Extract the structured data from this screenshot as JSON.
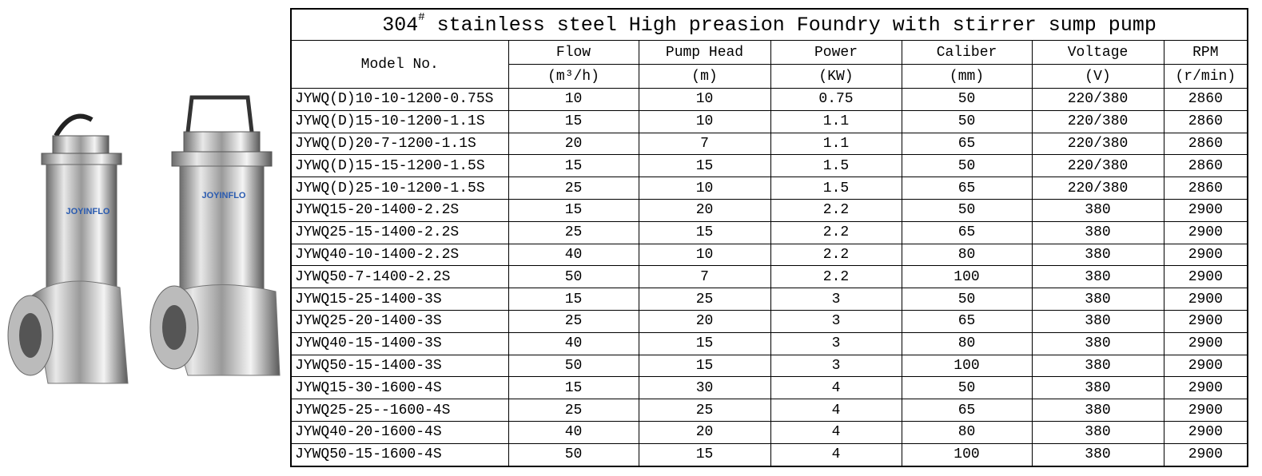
{
  "logos": [
    "JOYINFLO",
    "JOYINFLO"
  ],
  "table": {
    "title": {
      "main": "304",
      "sup": "#",
      "rest": " stainless steel High preasion Foundry with stirrer sump pump"
    },
    "model_header": "Model No.",
    "headers": [
      "Flow",
      "Pump Head",
      "Power",
      "Caliber",
      "Voltage",
      "RPM"
    ],
    "units": [
      "(m³/h)",
      "(m)",
      "(KW)",
      "(mm)",
      "(V)",
      "(r/min)"
    ],
    "rows": [
      [
        "JYWQ(D)10-10-1200-0.75S",
        "10",
        "10",
        "0.75",
        "50",
        "220/380",
        "2860"
      ],
      [
        "JYWQ(D)15-10-1200-1.1S",
        "15",
        "10",
        "1.1",
        "50",
        "220/380",
        "2860"
      ],
      [
        "JYWQ(D)20-7-1200-1.1S",
        "20",
        "7",
        "1.1",
        "65",
        "220/380",
        "2860"
      ],
      [
        "JYWQ(D)15-15-1200-1.5S",
        "15",
        "15",
        "1.5",
        "50",
        "220/380",
        "2860"
      ],
      [
        "JYWQ(D)25-10-1200-1.5S",
        "25",
        "10",
        "1.5",
        "65",
        "220/380",
        "2860"
      ],
      [
        "JYWQ15-20-1400-2.2S",
        "15",
        "20",
        "2.2",
        "50",
        "380",
        "2900"
      ],
      [
        "JYWQ25-15-1400-2.2S",
        "25",
        "15",
        "2.2",
        "65",
        "380",
        "2900"
      ],
      [
        "JYWQ40-10-1400-2.2S",
        "40",
        "10",
        "2.2",
        "80",
        "380",
        "2900"
      ],
      [
        "JYWQ50-7-1400-2.2S",
        "50",
        "7",
        "2.2",
        "100",
        "380",
        "2900"
      ],
      [
        "JYWQ15-25-1400-3S",
        "15",
        "25",
        "3",
        "50",
        "380",
        "2900"
      ],
      [
        "JYWQ25-20-1400-3S",
        "25",
        "20",
        "3",
        "65",
        "380",
        "2900"
      ],
      [
        "JYWQ40-15-1400-3S",
        "40",
        "15",
        "3",
        "80",
        "380",
        "2900"
      ],
      [
        "JYWQ50-15-1400-3S",
        "50",
        "15",
        "3",
        "100",
        "380",
        "2900"
      ],
      [
        "JYWQ15-30-1600-4S",
        "15",
        "30",
        "4",
        "50",
        "380",
        "2900"
      ],
      [
        "JYWQ25-25--1600-4S",
        "25",
        "25",
        "4",
        "65",
        "380",
        "2900"
      ],
      [
        "JYWQ40-20-1600-4S",
        "40",
        "20",
        "4",
        "80",
        "380",
        "2900"
      ],
      [
        "JYWQ50-15-1600-4S",
        "50",
        "15",
        "4",
        "100",
        "380",
        "2900"
      ]
    ]
  }
}
